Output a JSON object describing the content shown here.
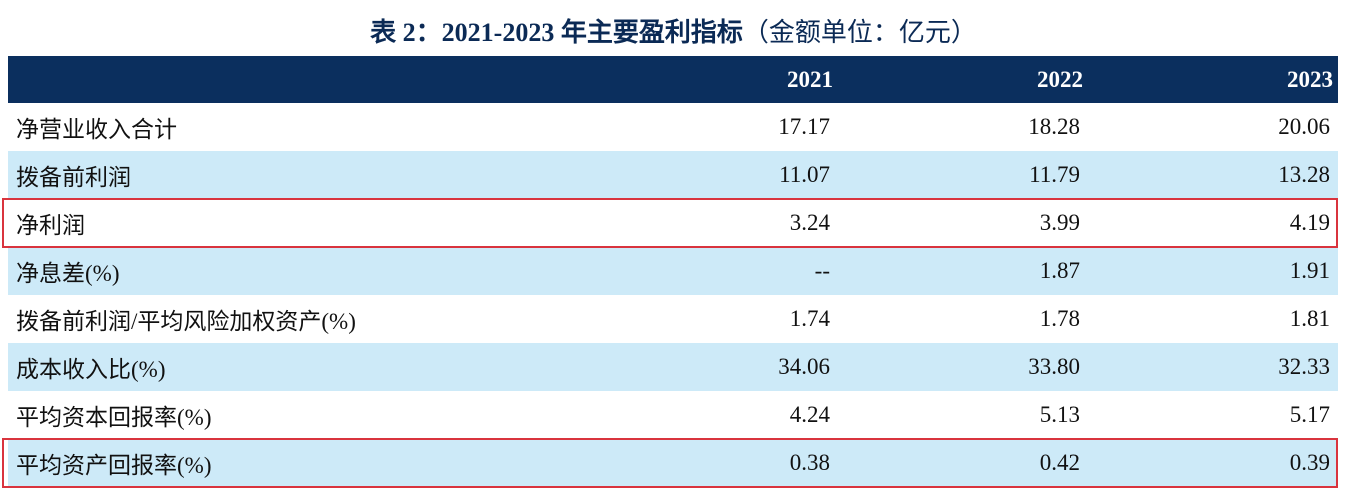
{
  "title": {
    "bold": "表 2：2021-2023 年主要盈利指标",
    "normal": "（金额单位：亿元）"
  },
  "table": {
    "headers": [
      "",
      "2021",
      "2022",
      "2023"
    ],
    "rows": [
      {
        "label": "净营业收入合计",
        "values": [
          "17.17",
          "18.28",
          "20.06"
        ],
        "highlighted": false
      },
      {
        "label": "拨备前利润",
        "values": [
          "11.07",
          "11.79",
          "13.28"
        ],
        "highlighted": false
      },
      {
        "label": "净利润",
        "values": [
          "3.24",
          "3.99",
          "4.19"
        ],
        "highlighted": true
      },
      {
        "label": "净息差(%)",
        "values": [
          "--",
          "1.87",
          "1.91"
        ],
        "highlighted": false
      },
      {
        "label": "拨备前利润/平均风险加权资产(%)",
        "values": [
          "1.74",
          "1.78",
          "1.81"
        ],
        "highlighted": false
      },
      {
        "label": "成本收入比(%)",
        "values": [
          "34.06",
          "33.80",
          "32.33"
        ],
        "highlighted": false
      },
      {
        "label": "平均资本回报率(%)",
        "values": [
          "4.24",
          "5.13",
          "5.17"
        ],
        "highlighted": false
      },
      {
        "label": "平均资产回报率(%)",
        "values": [
          "0.38",
          "0.42",
          "0.39"
        ],
        "highlighted": true
      }
    ]
  },
  "colors": {
    "header_bg": "#0b2f5e",
    "row_alt_bg": "#cdeaf8",
    "highlight_border": "#d9343e",
    "title_color": "#0b2a55"
  }
}
